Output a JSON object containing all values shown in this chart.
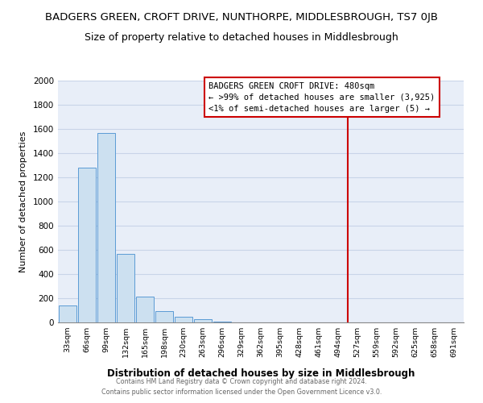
{
  "title": "BADGERS GREEN, CROFT DRIVE, NUNTHORPE, MIDDLESBROUGH, TS7 0JB",
  "subtitle": "Size of property relative to detached houses in Middlesbrough",
  "xlabel": "Distribution of detached houses by size in Middlesbrough",
  "ylabel": "Number of detached properties",
  "bar_labels": [
    "33sqm",
    "66sqm",
    "99sqm",
    "132sqm",
    "165sqm",
    "198sqm",
    "230sqm",
    "263sqm",
    "296sqm",
    "329sqm",
    "362sqm",
    "395sqm",
    "428sqm",
    "461sqm",
    "494sqm",
    "527sqm",
    "559sqm",
    "592sqm",
    "625sqm",
    "658sqm",
    "691sqm"
  ],
  "bar_values": [
    140,
    1280,
    1570,
    570,
    215,
    95,
    50,
    30,
    10,
    0,
    0,
    0,
    0,
    0,
    0,
    0,
    0,
    0,
    0,
    0,
    0
  ],
  "bar_color": "#cce0f0",
  "bar_edge_color": "#5b9bd5",
  "ylim": [
    0,
    2000
  ],
  "yticks": [
    0,
    200,
    400,
    600,
    800,
    1000,
    1200,
    1400,
    1600,
    1800,
    2000
  ],
  "vline_x": 14.5,
  "vline_color": "#cc0000",
  "annotation_title": "BADGERS GREEN CROFT DRIVE: 480sqm",
  "annotation_line1": "← >99% of detached houses are smaller (3,925)",
  "annotation_line2": "<1% of semi-detached houses are larger (5) →",
  "annotation_box_color": "#ffffff",
  "annotation_border_color": "#cc0000",
  "footer_line1": "Contains HM Land Registry data © Crown copyright and database right 2024.",
  "footer_line2": "Contains public sector information licensed under the Open Government Licence v3.0.",
  "background_color": "#ffffff",
  "plot_background_color": "#e8eef8",
  "grid_color": "#c8d4e8",
  "title_fontsize": 9.5,
  "subtitle_fontsize": 9.0
}
